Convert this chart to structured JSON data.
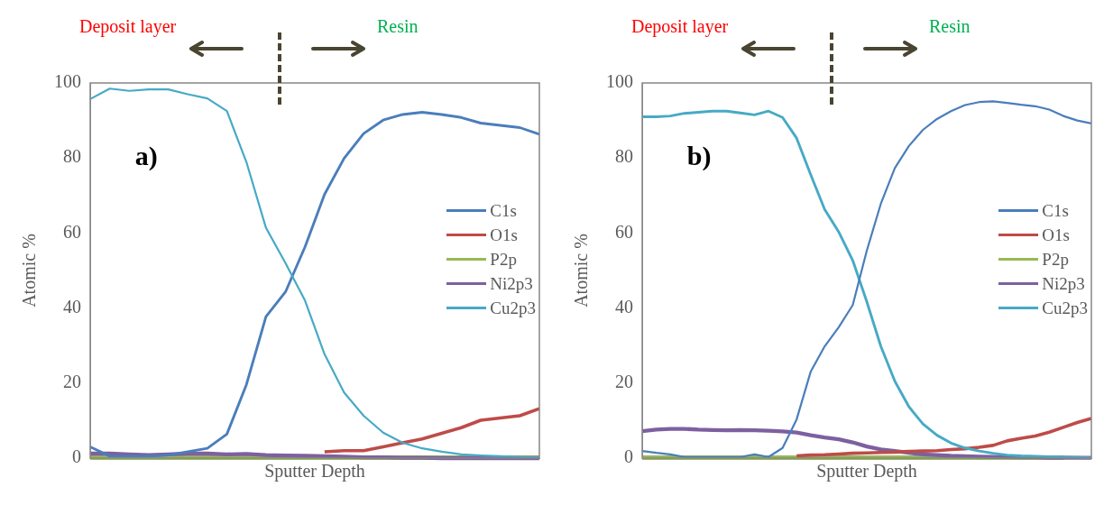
{
  "chart_data": [
    {
      "type": "line",
      "title": null,
      "xlabel": "Sputter Depth",
      "ylabel": "Atomic %",
      "annotations": [
        "Deposit layer",
        "Resin",
        "a)"
      ],
      "categories": [
        null,
        null,
        null,
        null,
        null,
        null,
        null,
        null,
        null,
        null,
        null,
        null,
        null,
        null,
        null,
        null,
        null,
        null,
        null,
        null,
        null,
        null,
        null,
        null
      ],
      "ylim": [
        0,
        100
      ],
      "yticks": [
        0,
        20,
        40,
        60,
        80,
        100
      ],
      "grid": false,
      "legend": "right",
      "tick_labels": "y",
      "marker": "none",
      "line_style": "solid",
      "series": [
        {
          "name": "C1s",
          "color": "#4a7ebb",
          "values": [
            3,
            0.5,
            0.5,
            0.5,
            0.8,
            1.7,
            2.6,
            6.4,
            19.6,
            37.7,
            44.3,
            56.3,
            70.3,
            79.9,
            86.5,
            90.1,
            91.6,
            92.2,
            91.6,
            90.8,
            89.3,
            88.7,
            88.1,
            86.3
          ]
        },
        {
          "name": "O1s",
          "color": "#be4b48",
          "values": [
            null,
            null,
            null,
            null,
            null,
            null,
            null,
            null,
            null,
            null,
            null,
            null,
            1.7,
            2,
            2,
            3,
            4.1,
            5.1,
            6.6,
            8.1,
            10.1,
            10.7,
            11.3,
            13.2
          ]
        },
        {
          "name": "P2p",
          "color": "#98b954",
          "values": [
            0.1,
            0.1,
            0.1,
            0.1,
            0.1,
            0.1,
            0.1,
            0.1,
            0.1,
            0.1,
            0.1,
            0.1,
            0.1,
            0.1,
            0.1,
            0.1,
            0.1,
            0.1,
            0.1,
            0.1,
            0.1,
            0.1,
            0.1,
            0.1
          ]
        },
        {
          "name": "Ni2p3",
          "color": "#7d60a0",
          "values": [
            1.2,
            1.2,
            1,
            0.8,
            1,
            1.2,
            1.2,
            1,
            1.1,
            0.8,
            0.7,
            0.6,
            0.5,
            0.4,
            0.2,
            0.2,
            0.1,
            0.1,
            0,
            0,
            0,
            0,
            0,
            0
          ]
        },
        {
          "name": "Cu2p3",
          "color": "#46aac5",
          "values": [
            95.7,
            98.5,
            97.9,
            98.3,
            98.3,
            97,
            95.9,
            92.5,
            78.9,
            61.4,
            52,
            42,
            27.7,
            17.5,
            11.3,
            6.8,
            4.1,
            2.6,
            1.7,
            1,
            0.7,
            0.5,
            0.3,
            0.2
          ]
        }
      ]
    },
    {
      "type": "line",
      "title": null,
      "xlabel": "Sputter Depth",
      "ylabel": "Atomic %",
      "annotations": [
        "Deposit layer",
        "Resin",
        "b)"
      ],
      "categories": [
        null,
        null,
        null,
        null,
        null,
        null,
        null,
        null,
        null,
        null,
        null,
        null,
        null,
        null,
        null,
        null,
        null,
        null,
        null,
        null,
        null,
        null,
        null,
        null,
        null,
        null,
        null,
        null,
        null,
        null,
        null,
        null,
        null
      ],
      "ylim": [
        0,
        100
      ],
      "yticks": [
        0,
        20,
        40,
        60,
        80,
        100
      ],
      "grid": false,
      "legend": "right",
      "tick_labels": "y",
      "marker": "none",
      "line_style": "solid",
      "series": [
        {
          "name": "C1s",
          "color": "#4a7ebb",
          "values": [
            1.9,
            1.4,
            1,
            0.3,
            0.3,
            0.3,
            0.3,
            0.3,
            1,
            0.3,
            2.7,
            10.3,
            23,
            29.8,
            34.9,
            40.8,
            55.3,
            67.8,
            77.3,
            83.2,
            87.5,
            90.4,
            92.5,
            94.1,
            94.9,
            95.1,
            94.7,
            94.2,
            93.8,
            92.9,
            91.2,
            90,
            89.2
          ]
        },
        {
          "name": "O1s",
          "color": "#be4b48",
          "values": [
            null,
            null,
            null,
            null,
            null,
            null,
            null,
            null,
            null,
            null,
            null,
            0.6,
            0.8,
            0.9,
            1.1,
            1.3,
            1.4,
            1.5,
            1.6,
            1.8,
            1.9,
            2,
            2.3,
            2.5,
            2.9,
            3.4,
            4.6,
            5.3,
            5.9,
            6.9,
            8.2,
            9.5,
            10.6
          ]
        },
        {
          "name": "P2p",
          "color": "#98b954",
          "values": [
            0.1,
            0.1,
            0.1,
            0.1,
            0.1,
            0.1,
            0.1,
            0.1,
            0.1,
            0.1,
            0.1,
            0.1,
            0.1,
            0.1,
            0.1,
            0.1,
            0.1,
            0.1,
            0.1,
            0.1,
            0.1,
            0.1,
            0.1,
            0.1,
            0.1,
            0.1,
            0.1,
            0.1,
            0.1,
            0.1,
            0.1,
            null,
            null
          ]
        },
        {
          "name": "Ni2p3",
          "color": "#7d60a0",
          "values": [
            7.2,
            7.6,
            7.8,
            7.8,
            7.6,
            7.5,
            7.4,
            7.5,
            7.4,
            7.3,
            7.1,
            6.8,
            6.1,
            5.5,
            5,
            4.2,
            3.1,
            2.3,
            1.9,
            1.4,
            1,
            0.8,
            0.6,
            0.5,
            0.4,
            0.3,
            0.3,
            0.2,
            0.2,
            0.1,
            0.1,
            0.1,
            0.1
          ]
        },
        {
          "name": "Cu2p3",
          "color": "#46aac5",
          "values": [
            91,
            91,
            91.2,
            91.9,
            92.2,
            92.5,
            92.5,
            92,
            91.5,
            92.5,
            90.8,
            85.3,
            75.6,
            66.3,
            60.3,
            52.7,
            41.7,
            29.8,
            20.5,
            13.7,
            9.1,
            6.1,
            4,
            2.7,
            1.9,
            1.3,
            0.8,
            0.6,
            0.5,
            0.4,
            0.3,
            0.2,
            0.1
          ]
        }
      ]
    }
  ]
}
